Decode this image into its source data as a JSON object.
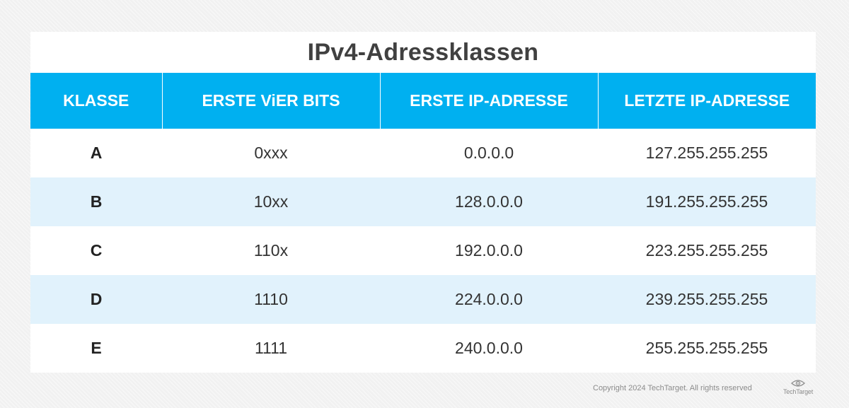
{
  "title": "IPv4-Adressklassen",
  "chart_data": {
    "type": "table",
    "title": "IPv4-Adressklassen",
    "columns": [
      "KLASSE",
      "ERSTE ViER BITS",
      "ERSTE IP-ADRESSE",
      "LETZTE IP-ADRESSE"
    ],
    "rows": [
      [
        "A",
        "0xxx",
        "0.0.0.0",
        "127.255.255.255"
      ],
      [
        "B",
        "10xx",
        "128.0.0.0",
        "191.255.255.255"
      ],
      [
        "C",
        "110x",
        "192.0.0.0",
        "223.255.255.255"
      ],
      [
        "D",
        "1110",
        "224.0.0.0",
        "239.255.255.255"
      ],
      [
        "E",
        "1111",
        "240.0.0.0",
        "255.255.255.255"
      ]
    ]
  },
  "footer": {
    "copyright": "Copyright 2024 TechTarget. All rights reserved",
    "logo_text": "TechTarget"
  },
  "colors": {
    "header_bg": "#00b0f0",
    "alt_row_bg": "#e1f2fc",
    "title_text": "#404040"
  },
  "icons": {
    "logo": "techtarget-eye-logo"
  }
}
